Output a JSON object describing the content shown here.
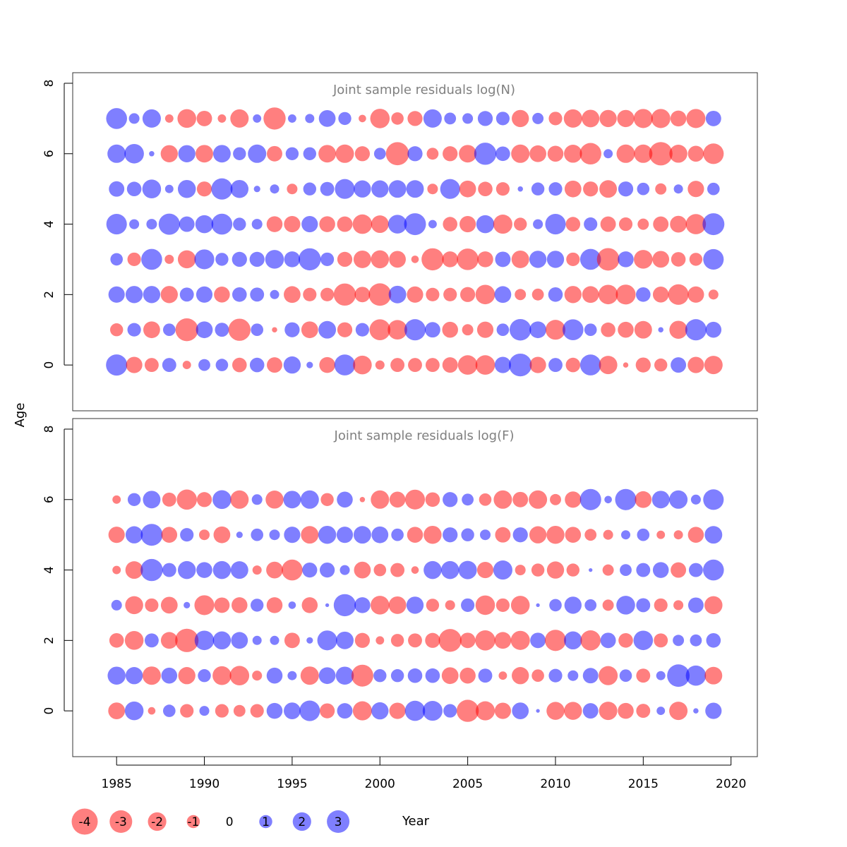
{
  "chart_data": [
    {
      "type": "scatter",
      "title": "Joint sample residuals log(N)",
      "ylabel": "Age",
      "xlim": [
        1982.5,
        2021.5
      ],
      "ylim": [
        -1.3,
        8.3
      ],
      "yticks": [
        0,
        2,
        4,
        6,
        8
      ],
      "years": [
        1985,
        1986,
        1987,
        1988,
        1989,
        1990,
        1991,
        1992,
        1993,
        1994,
        1995,
        1996,
        1997,
        1998,
        1999,
        2000,
        2001,
        2002,
        2003,
        2004,
        2005,
        2006,
        2007,
        2008,
        2009,
        2010,
        2011,
        2012,
        2013,
        2014,
        2015,
        2016,
        2017,
        2018,
        2019
      ],
      "ages": [
        0,
        1,
        2,
        3,
        4,
        5,
        6,
        7
      ],
      "residuals": [
        [
          3.2,
          -1.9,
          -1.4,
          1.4,
          -0.5,
          1.0,
          1.1,
          -1.5,
          1.5,
          -1.7,
          2.1,
          0.3,
          -1.8,
          3.1,
          -2.5,
          -0.6,
          -1.4,
          -1.4,
          -1.4,
          -1.7,
          -2.7,
          -2.7,
          1.9,
          3.7,
          -1.9,
          1.4,
          -1.5,
          3.1,
          -2.4,
          -0.2,
          -1.6,
          -1.2,
          1.7,
          -1.9,
          -2.4
        ],
        [
          -1.2,
          1.3,
          -2.0,
          1.1,
          -3.7,
          2.0,
          1.4,
          -3.5,
          1.1,
          -0.2,
          1.6,
          -2.0,
          2.2,
          -1.6,
          1.3,
          -3.1,
          -2.7,
          3.2,
          1.7,
          -1.8,
          -0.9,
          -1.9,
          1.1,
          3.3,
          2.0,
          -2.8,
          3.1,
          1.1,
          -1.5,
          -1.8,
          -2.2,
          0.2,
          -2.3,
          3.2,
          1.8
        ],
        [
          1.9,
          2.1,
          2.1,
          -2.1,
          1.4,
          1.9,
          -1.8,
          1.5,
          1.4,
          0.6,
          -2.0,
          -1.3,
          -1.3,
          -3.5,
          -1.7,
          -3.6,
          2.2,
          -1.9,
          -1.3,
          -1.3,
          -1.6,
          -2.7,
          2.0,
          -0.9,
          -1.0,
          1.5,
          -2.1,
          -2.0,
          -2.7,
          -2.8,
          1.5,
          -1.8,
          -3.0,
          -1.9,
          -0.7
        ],
        [
          1.1,
          -1.3,
          3.1,
          -0.6,
          -2.3,
          2.8,
          1.2,
          1.6,
          1.6,
          2.5,
          1.8,
          3.5,
          1.3,
          -1.6,
          -2.2,
          -2.3,
          -2.0,
          -0.4,
          -3.5,
          -1.8,
          -3.3,
          -1.8,
          1.7,
          -2.2,
          2.1,
          2.1,
          -1.3,
          3.1,
          -3.6,
          1.8,
          -2.5,
          -2.0,
          -1.5,
          -1.2,
          3.0
        ],
        [
          3.0,
          0.7,
          0.8,
          3.2,
          1.7,
          2.3,
          3.1,
          1.2,
          0.8,
          -1.8,
          -1.9,
          1.9,
          -1.8,
          -1.7,
          -2.7,
          -2.2,
          2.5,
          3.4,
          0.5,
          -1.5,
          -1.9,
          2.3,
          -2.6,
          -1.2,
          0.7,
          3.0,
          -1.5,
          1.3,
          -1.7,
          -1.3,
          -0.9,
          -1.7,
          -2.0,
          -2.9,
          3.4
        ],
        [
          1.7,
          1.5,
          2.5,
          0.5,
          2.3,
          -1.6,
          3.2,
          2.3,
          0.3,
          0.6,
          -0.8,
          1.2,
          1.4,
          2.8,
          2.1,
          2.1,
          2.2,
          2.2,
          -0.8,
          2.8,
          -2.0,
          -1.5,
          -1.3,
          0.2,
          1.2,
          1.3,
          -2.0,
          -1.6,
          -2.2,
          1.6,
          1.1,
          -0.9,
          0.6,
          -1.9,
          1.1
        ],
        [
          2.4,
          2.7,
          0.2,
          -2.1,
          2.1,
          -2.2,
          2.2,
          1.2,
          2.4,
          -1.7,
          1.2,
          1.2,
          -2.2,
          -2.4,
          -1.6,
          1.0,
          -3.8,
          1.6,
          -1.0,
          -1.6,
          -2.2,
          3.5,
          1.5,
          -2.4,
          -2.0,
          -1.8,
          -2.3,
          -3.3,
          0.6,
          -2.4,
          -2.4,
          -3.9,
          -2.3,
          -1.8,
          -3.0
        ],
        [
          3.1,
          0.8,
          2.4,
          -0.5,
          -2.5,
          -1.7,
          -0.5,
          -2.4,
          0.5,
          -3.5,
          0.5,
          0.6,
          2.0,
          1.2,
          -0.4,
          -2.7,
          -1.1,
          -1.6,
          2.4,
          1.0,
          0.8,
          1.6,
          1.3,
          -2.1,
          0.9,
          -1.3,
          -2.4,
          -2.2,
          -2.1,
          -2.1,
          -2.6,
          -2.6,
          -1.8,
          -2.6,
          1.7
        ]
      ]
    },
    {
      "type": "scatter",
      "title": "Joint sample residuals log(F)",
      "ylabel": "Age",
      "xlim": [
        1982.5,
        2021.5
      ],
      "ylim": [
        -1.3,
        8.3
      ],
      "yticks": [
        0,
        2,
        4,
        6,
        8
      ],
      "years": [
        1985,
        1986,
        1987,
        1988,
        1989,
        1990,
        1991,
        1992,
        1993,
        1994,
        1995,
        1996,
        1997,
        1998,
        1999,
        2000,
        2001,
        2002,
        2003,
        2004,
        2005,
        2006,
        2007,
        2008,
        2009,
        2010,
        2011,
        2012,
        2013,
        2014,
        2015,
        2016,
        2017,
        2018,
        2019
      ],
      "ages": [
        0,
        1,
        2,
        3,
        4,
        5,
        6
      ],
      "residuals": [
        [
          -2.0,
          2.5,
          -0.4,
          1.1,
          -1.3,
          0.7,
          -1.3,
          -1.0,
          -1.3,
          1.8,
          2.0,
          3.0,
          -1.6,
          1.7,
          -2.6,
          2.1,
          -1.9,
          2.9,
          2.8,
          1.3,
          -3.5,
          -2.6,
          -1.9,
          2.0,
          0.1,
          -2.3,
          -2.3,
          1.7,
          -2.4,
          -1.8,
          -1.4,
          0.5,
          -2.4,
          0.2,
          1.9
        ],
        [
          2.3,
          2.1,
          -2.4,
          1.8,
          -2.1,
          1.2,
          -2.5,
          -2.7,
          -0.7,
          1.8,
          0.6,
          -2.4,
          2.0,
          2.3,
          -3.4,
          1.2,
          1.2,
          1.5,
          1.5,
          -2.0,
          -1.8,
          1.4,
          -0.5,
          -2.1,
          -1.1,
          1.3,
          0.8,
          1.7,
          -2.6,
          1.1,
          -1.4,
          0.6,
          3.6,
          2.9,
          -2.2
        ],
        [
          -1.5,
          -2.5,
          1.4,
          -2.0,
          -3.9,
          2.7,
          2.3,
          2.0,
          0.6,
          0.6,
          -1.7,
          0.3,
          2.8,
          2.2,
          -1.6,
          -0.5,
          -1.2,
          -1.4,
          -1.6,
          -3.7,
          -1.7,
          -2.9,
          -2.0,
          -2.6,
          1.7,
          -3.2,
          2.3,
          -2.9,
          1.7,
          -1.5,
          2.7,
          -1.4,
          0.9,
          1.0,
          1.5
        ],
        [
          0.8,
          -2.3,
          -1.3,
          -2.0,
          0.3,
          -2.8,
          -1.7,
          -1.8,
          1.2,
          -1.8,
          0.4,
          -1.8,
          0.1,
          3.5,
          1.8,
          -2.5,
          -2.2,
          2.1,
          -1.2,
          -0.7,
          1.3,
          -2.7,
          -1.3,
          -2.5,
          0.1,
          1.1,
          2.1,
          1.0,
          -0.9,
          2.5,
          1.4,
          -1.3,
          -0.7,
          1.7,
          -2.3
        ],
        [
          -0.5,
          -2.2,
          3.5,
          1.4,
          2.3,
          1.8,
          2.3,
          2.2,
          -0.6,
          -2.0,
          -3.1,
          1.6,
          1.6,
          0.7,
          -2.0,
          -1.1,
          -1.4,
          -0.4,
          2.3,
          2.3,
          2.4,
          -1.9,
          2.6,
          -0.8,
          -1.2,
          -2.1,
          -1.2,
          0.1,
          -0.9,
          1.0,
          1.4,
          1.8,
          -1.7,
          1.4,
          3.1
        ],
        [
          -1.9,
          2.1,
          3.4,
          -1.8,
          1.3,
          -0.8,
          -2.0,
          0.3,
          1.1,
          0.8,
          1.9,
          -2.2,
          2.3,
          1.9,
          2.2,
          2.0,
          1.1,
          -1.8,
          -2.3,
          1.6,
          1.2,
          0.8,
          -1.7,
          1.6,
          -2.1,
          -2.3,
          -1.8,
          -1.0,
          -0.7,
          0.6,
          1.1,
          -0.5,
          -0.6,
          -1.8,
          2.2
        ],
        [
          -0.5,
          1.2,
          2.2,
          -1.4,
          -2.9,
          -1.6,
          2.5,
          -2.4,
          0.8,
          -2.3,
          2.2,
          2.4,
          -1.2,
          1.8,
          -0.2,
          -2.4,
          -1.8,
          -2.8,
          -1.5,
          1.6,
          1.0,
          -1.1,
          -2.4,
          -1.7,
          -2.4,
          -0.9,
          -1.9,
          3.2,
          0.4,
          3.2,
          -2.0,
          2.2,
          2.4,
          0.7,
          3.0
        ]
      ]
    }
  ],
  "xaxis": {
    "label": "Year",
    "ticks": [
      1985,
      1990,
      1995,
      2000,
      2005,
      2010,
      2015,
      2020
    ]
  },
  "legend": {
    "items": [
      {
        "label": "-4",
        "value": -4
      },
      {
        "label": "-3",
        "value": -3
      },
      {
        "label": "-2",
        "value": -2
      },
      {
        "label": "-1",
        "value": -1
      },
      {
        "label": "0",
        "value": 0
      },
      {
        "label": "1",
        "value": 1
      },
      {
        "label": "2",
        "value": 2
      },
      {
        "label": "3",
        "value": 3
      }
    ]
  },
  "colors": {
    "negative": "#ff0000",
    "positive": "#0000ff",
    "bubble_opacity": 0.5,
    "title": "#808080"
  }
}
